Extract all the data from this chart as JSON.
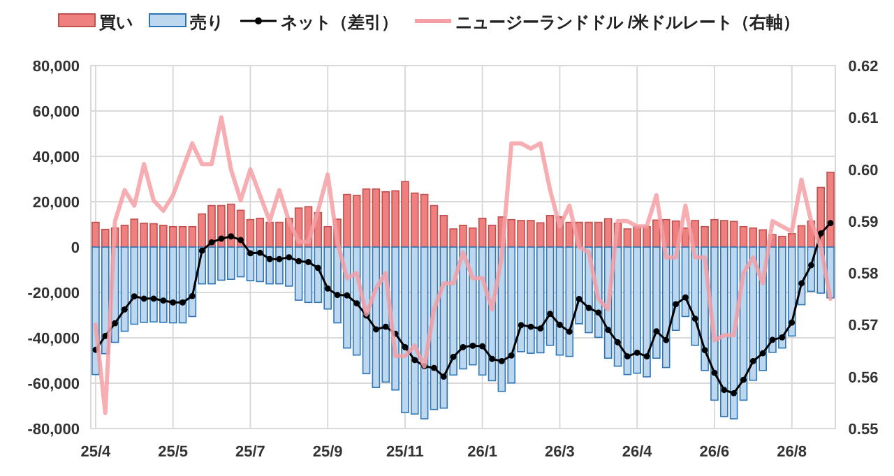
{
  "chart_data": {
    "type": "bar",
    "stacked": true,
    "grid": true,
    "legend": "top",
    "categories": [
      "25/4",
      null,
      null,
      null,
      null,
      null,
      null,
      null,
      "25/5",
      null,
      null,
      null,
      null,
      null,
      null,
      null,
      "25/7",
      null,
      null,
      null,
      null,
      null,
      null,
      null,
      "25/9",
      null,
      null,
      null,
      null,
      null,
      null,
      null,
      "25/11",
      null,
      null,
      null,
      null,
      null,
      null,
      null,
      "26/1",
      null,
      null,
      null,
      null,
      null,
      null,
      null,
      "26/3",
      null,
      null,
      null,
      null,
      null,
      null,
      null,
      "26/4",
      null,
      null,
      null,
      null,
      null,
      null,
      null,
      "26/6",
      null,
      null,
      null,
      null,
      null,
      null,
      null,
      "26/8",
      null,
      null,
      null,
      null
    ],
    "ylim": [
      -80000,
      80000
    ],
    "yticks": [
      {
        "value": -80000,
        "label": "-80,000"
      },
      {
        "value": -60000,
        "label": "-60,000"
      },
      {
        "value": -40000,
        "label": "-40,000"
      },
      {
        "value": -20000,
        "label": "-20,000"
      },
      0,
      {
        "value": 20000,
        "label": "20,000"
      },
      {
        "value": 40000,
        "label": "40,000"
      },
      {
        "value": 60000,
        "label": "60,000"
      },
      {
        "value": 80000,
        "label": "80,000"
      }
    ],
    "y2lim": [
      0.55,
      0.62
    ],
    "y2ticks": [
      {
        "value": 0.55,
        "label": "0.55"
      },
      {
        "value": 0.56,
        "label": "0.56"
      },
      {
        "value": 0.57,
        "label": "0.57"
      },
      {
        "value": 0.58,
        "label": "0.58"
      },
      {
        "value": 0.59,
        "label": "0.59"
      },
      {
        "value": 0.6,
        "label": "0.60"
      },
      {
        "value": 0.61,
        "label": "0.61"
      },
      {
        "value": 0.62,
        "label": "0.62"
      }
    ],
    "series": [
      {
        "name": "買い",
        "color": "#ef8080",
        "values": [
          10900,
          7800,
          8400,
          9600,
          12300,
          10500,
          10300,
          9600,
          9000,
          9000,
          9000,
          14600,
          18300,
          18300,
          18900,
          16200,
          12100,
          12700,
          10900,
          10900,
          12700,
          17200,
          17800,
          15200,
          9000,
          12300,
          23200,
          22800,
          25600,
          25600,
          24400,
          24800,
          28900,
          23800,
          23200,
          18300,
          13900,
          8000,
          9600,
          8400,
          12700,
          9600,
          13300,
          12100,
          11700,
          11700,
          10700,
          13900,
          13300,
          10900,
          10900,
          10900,
          10900,
          12500,
          10500,
          8000,
          9000,
          9000,
          11900,
          12100,
          11500,
          8400,
          11700,
          9000,
          12100,
          11700,
          11300,
          9000,
          8400,
          7600,
          5500,
          4700,
          5900,
          9400,
          11500,
          26300,
          33000
        ]
      },
      {
        "name": "売り",
        "color": "#bdd7ee",
        "values": [
          -56200,
          -47000,
          -42000,
          -37100,
          -34000,
          -33200,
          -33000,
          -33200,
          -33400,
          -33400,
          -30600,
          -16200,
          -16200,
          -14600,
          -14200,
          -13100,
          -14800,
          -15200,
          -16200,
          -16200,
          -17200,
          -23400,
          -24400,
          -24400,
          -27300,
          -33400,
          -44500,
          -47600,
          -55800,
          -61900,
          -59500,
          -63000,
          -73000,
          -73600,
          -75700,
          -71600,
          -71000,
          -56400,
          -53700,
          -51900,
          -56400,
          -58900,
          -63600,
          -59900,
          -46100,
          -46800,
          -46600,
          -43300,
          -47600,
          -48200,
          -33800,
          -37700,
          -39800,
          -49000,
          -52500,
          -56200,
          -55600,
          -57200,
          -49000,
          -53100,
          -36700,
          -30600,
          -43300,
          -54400,
          -67500,
          -74700,
          -75700,
          -67500,
          -58700,
          -54400,
          -46400,
          -44500,
          -39200,
          -25400,
          -19500,
          -20300,
          -22400
        ]
      },
      {
        "name": "ネット（差引）",
        "type": "line",
        "color": "#000000",
        "marker": "circle",
        "values": [
          -45300,
          -39200,
          -33600,
          -27500,
          -21700,
          -22700,
          -22700,
          -23600,
          -24400,
          -24400,
          -21600,
          -1600,
          2100,
          3700,
          4700,
          3100,
          -2700,
          -2500,
          -5300,
          -5300,
          -4500,
          -6200,
          -6600,
          -9200,
          -18300,
          -21100,
          -21300,
          -24800,
          -30200,
          -36300,
          -35100,
          -38200,
          -44100,
          -49800,
          -52500,
          -53300,
          -57100,
          -48400,
          -44100,
          -43500,
          -43700,
          -49300,
          -50300,
          -47800,
          -34400,
          -35100,
          -35900,
          -29400,
          -34300,
          -37300,
          -22900,
          -26800,
          -28900,
          -36500,
          -42000,
          -48200,
          -46600,
          -48200,
          -37100,
          -41000,
          -25200,
          -22200,
          -31600,
          -45400,
          -55400,
          -63000,
          -64400,
          -58500,
          -50300,
          -46800,
          -40900,
          -39800,
          -33300,
          -16000,
          -8000,
          6000,
          10600
        ]
      },
      {
        "name": "ニュージーランドドル /米ドルレート（右軸）",
        "type": "line",
        "axis": "y2",
        "color": "#f4a0a6",
        "values": [
          0.57,
          0.553,
          0.59,
          0.596,
          0.593,
          0.601,
          0.594,
          0.592,
          0.595,
          0.6,
          0.605,
          0.601,
          0.601,
          0.61,
          0.6,
          0.594,
          0.6,
          0.595,
          0.59,
          0.596,
          0.59,
          0.586,
          0.586,
          0.592,
          0.599,
          0.586,
          0.579,
          0.58,
          0.572,
          0.577,
          0.58,
          0.564,
          0.564,
          0.566,
          0.562,
          0.573,
          0.578,
          0.578,
          0.584,
          0.579,
          0.579,
          0.573,
          0.583,
          0.605,
          0.605,
          0.604,
          0.605,
          0.596,
          0.589,
          0.593,
          0.585,
          0.584,
          0.575,
          0.573,
          0.59,
          0.59,
          0.589,
          0.589,
          0.595,
          0.583,
          0.583,
          0.593,
          0.583,
          0.583,
          0.567,
          0.568,
          0.568,
          0.58,
          0.583,
          0.578,
          0.59,
          0.589,
          0.588,
          0.598,
          0.59,
          0.585,
          0.575
        ]
      }
    ]
  }
}
